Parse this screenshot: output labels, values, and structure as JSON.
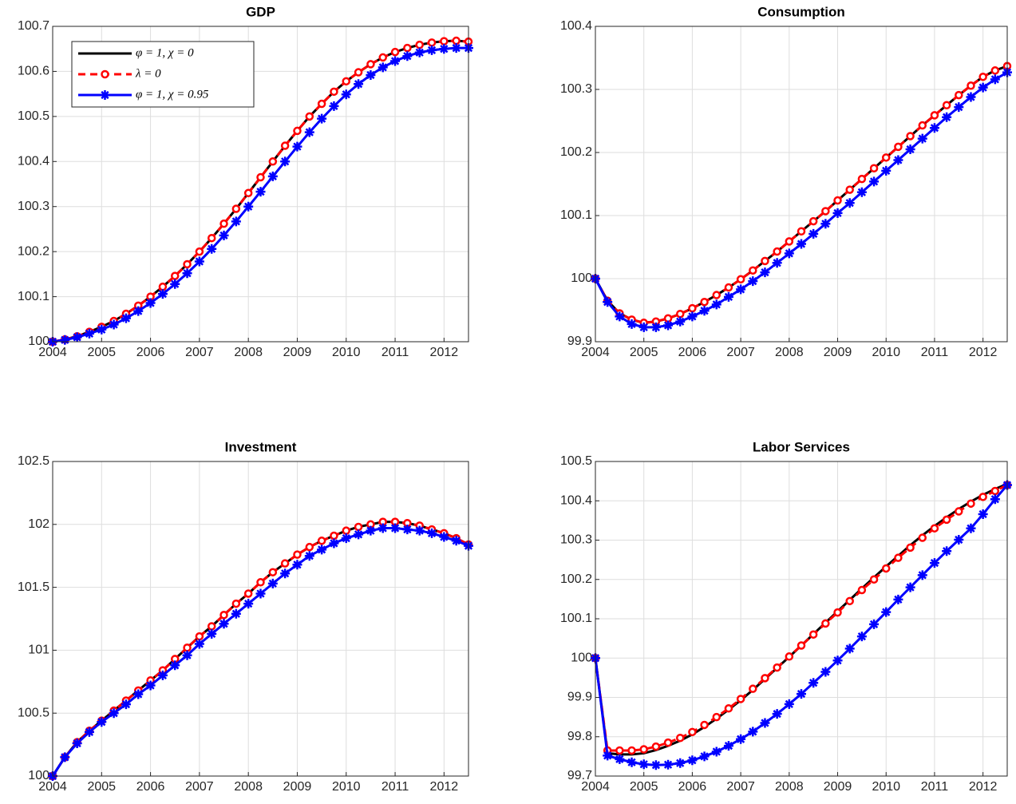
{
  "chart_data": [
    {
      "type": "line",
      "title": "GDP",
      "grid": true,
      "legend": "northwest",
      "x": [
        2004,
        2004.25,
        2004.5,
        2004.75,
        2005,
        2005.25,
        2005.5,
        2005.75,
        2006,
        2006.25,
        2006.5,
        2006.75,
        2007,
        2007.25,
        2007.5,
        2007.75,
        2008,
        2008.25,
        2008.5,
        2008.75,
        2009,
        2009.25,
        2009.5,
        2009.75,
        2010,
        2010.25,
        2010.5,
        2010.75,
        2011,
        2011.25,
        2011.5,
        2011.75,
        2012,
        2012.25,
        2012.5
      ],
      "xlim": [
        2004,
        2012.5
      ],
      "xticks": [
        2004,
        2005,
        2006,
        2007,
        2008,
        2009,
        2010,
        2011,
        2012
      ],
      "ylim": [
        100,
        100.7
      ],
      "yticks": [
        100,
        100.1,
        100.2,
        100.3,
        100.4,
        100.5,
        100.6,
        100.7
      ],
      "series": [
        {
          "name": "φ = 1, χ = 0",
          "color": "#000000",
          "linestyle": "solid",
          "marker": "none",
          "values": [
            100,
            100.005,
            100.012,
            100.022,
            100.033,
            100.046,
            100.062,
            100.08,
            100.1,
            100.122,
            100.146,
            100.172,
            100.2,
            100.23,
            100.262,
            100.295,
            100.33,
            100.365,
            100.4,
            100.435,
            100.468,
            100.5,
            100.528,
            100.555,
            100.578,
            100.598,
            100.616,
            100.631,
            100.643,
            100.652,
            100.659,
            100.664,
            100.667,
            100.668,
            100.666
          ]
        },
        {
          "name": "λ = 0",
          "color": "#ff0000",
          "linestyle": "dashed",
          "marker": "circle",
          "values": [
            100,
            100.005,
            100.012,
            100.022,
            100.033,
            100.046,
            100.062,
            100.08,
            100.1,
            100.122,
            100.146,
            100.172,
            100.2,
            100.23,
            100.262,
            100.295,
            100.33,
            100.365,
            100.4,
            100.435,
            100.468,
            100.5,
            100.528,
            100.555,
            100.578,
            100.598,
            100.616,
            100.631,
            100.643,
            100.652,
            100.659,
            100.664,
            100.667,
            100.668,
            100.666
          ]
        },
        {
          "name": "φ = 1, χ = 0.95",
          "color": "#0000ff",
          "linestyle": "solid",
          "marker": "asterisk",
          "values": [
            100,
            100.004,
            100.01,
            100.018,
            100.027,
            100.038,
            100.052,
            100.068,
            100.086,
            100.106,
            100.128,
            100.152,
            100.178,
            100.206,
            100.236,
            100.267,
            100.3,
            100.333,
            100.367,
            100.4,
            100.433,
            100.465,
            100.495,
            100.523,
            100.549,
            100.572,
            100.592,
            100.609,
            100.623,
            100.634,
            100.642,
            100.647,
            100.65,
            100.652,
            100.652
          ]
        }
      ]
    },
    {
      "type": "line",
      "title": "Consumption",
      "grid": true,
      "x": [
        2004,
        2004.25,
        2004.5,
        2004.75,
        2005,
        2005.25,
        2005.5,
        2005.75,
        2006,
        2006.25,
        2006.5,
        2006.75,
        2007,
        2007.25,
        2007.5,
        2007.75,
        2008,
        2008.25,
        2008.5,
        2008.75,
        2009,
        2009.25,
        2009.5,
        2009.75,
        2010,
        2010.25,
        2010.5,
        2010.75,
        2011,
        2011.25,
        2011.5,
        2011.75,
        2012,
        2012.25,
        2012.5
      ],
      "xlim": [
        2004,
        2012.5
      ],
      "xticks": [
        2004,
        2005,
        2006,
        2007,
        2008,
        2009,
        2010,
        2011,
        2012
      ],
      "ylim": [
        99.9,
        100.4
      ],
      "yticks": [
        99.9,
        100,
        100.1,
        100.2,
        100.3,
        100.4
      ],
      "series": [
        {
          "color": "#000000",
          "linestyle": "solid",
          "marker": "none",
          "values": [
            100,
            99.965,
            99.945,
            99.935,
            99.93,
            99.932,
            99.937,
            99.944,
            99.953,
            99.963,
            99.974,
            99.986,
            99.999,
            100.013,
            100.028,
            100.043,
            100.059,
            100.075,
            100.091,
            100.107,
            100.124,
            100.141,
            100.158,
            100.175,
            100.192,
            100.209,
            100.226,
            100.243,
            100.259,
            100.275,
            100.291,
            100.306,
            100.32,
            100.33,
            100.337
          ]
        },
        {
          "color": "#ff0000",
          "linestyle": "dashed",
          "marker": "circle",
          "values": [
            100,
            99.965,
            99.945,
            99.935,
            99.93,
            99.932,
            99.937,
            99.944,
            99.953,
            99.963,
            99.974,
            99.986,
            99.999,
            100.013,
            100.028,
            100.043,
            100.059,
            100.075,
            100.091,
            100.107,
            100.124,
            100.141,
            100.158,
            100.175,
            100.192,
            100.209,
            100.226,
            100.243,
            100.259,
            100.275,
            100.291,
            100.306,
            100.32,
            100.33,
            100.337
          ]
        },
        {
          "color": "#0000ff",
          "linestyle": "solid",
          "marker": "asterisk",
          "values": [
            100,
            99.963,
            99.94,
            99.928,
            99.923,
            99.923,
            99.926,
            99.932,
            99.94,
            99.949,
            99.959,
            99.971,
            99.983,
            99.996,
            100.01,
            100.025,
            100.04,
            100.055,
            100.071,
            100.087,
            100.104,
            100.12,
            100.137,
            100.154,
            100.171,
            100.188,
            100.205,
            100.222,
            100.239,
            100.256,
            100.272,
            100.288,
            100.303,
            100.316,
            100.327
          ]
        }
      ]
    },
    {
      "type": "line",
      "title": "Investment",
      "grid": true,
      "x": [
        2004,
        2004.25,
        2004.5,
        2004.75,
        2005,
        2005.25,
        2005.5,
        2005.75,
        2006,
        2006.25,
        2006.5,
        2006.75,
        2007,
        2007.25,
        2007.5,
        2007.75,
        2008,
        2008.25,
        2008.5,
        2008.75,
        2009,
        2009.25,
        2009.5,
        2009.75,
        2010,
        2010.25,
        2010.5,
        2010.75,
        2011,
        2011.25,
        2011.5,
        2011.75,
        2012,
        2012.25,
        2012.5
      ],
      "xlim": [
        2004,
        2012.5
      ],
      "xticks": [
        2004,
        2005,
        2006,
        2007,
        2008,
        2009,
        2010,
        2011,
        2012
      ],
      "ylim": [
        100,
        102.5
      ],
      "yticks": [
        100,
        100.5,
        101,
        101.5,
        102,
        102.5
      ],
      "series": [
        {
          "color": "#000000",
          "linestyle": "solid",
          "marker": "none",
          "values": [
            100,
            100.15,
            100.27,
            100.36,
            100.44,
            100.52,
            100.6,
            100.68,
            100.76,
            100.84,
            100.93,
            101.02,
            101.11,
            101.19,
            101.28,
            101.37,
            101.45,
            101.54,
            101.62,
            101.69,
            101.76,
            101.82,
            101.87,
            101.91,
            101.95,
            101.98,
            102,
            102.02,
            102.02,
            102.01,
            101.99,
            101.96,
            101.93,
            101.89,
            101.84
          ]
        },
        {
          "color": "#ff0000",
          "linestyle": "dashed",
          "marker": "circle",
          "values": [
            100,
            100.15,
            100.27,
            100.36,
            100.44,
            100.52,
            100.6,
            100.68,
            100.76,
            100.84,
            100.93,
            101.02,
            101.11,
            101.19,
            101.28,
            101.37,
            101.45,
            101.54,
            101.62,
            101.69,
            101.76,
            101.82,
            101.87,
            101.91,
            101.95,
            101.98,
            102,
            102.02,
            102.02,
            102.01,
            101.99,
            101.96,
            101.93,
            101.89,
            101.84
          ]
        },
        {
          "color": "#0000ff",
          "linestyle": "solid",
          "marker": "asterisk",
          "values": [
            100,
            100.15,
            100.26,
            100.35,
            100.43,
            100.5,
            100.57,
            100.65,
            100.72,
            100.8,
            100.88,
            100.96,
            101.05,
            101.13,
            101.21,
            101.29,
            101.37,
            101.45,
            101.53,
            101.61,
            101.68,
            101.75,
            101.8,
            101.85,
            101.89,
            101.92,
            101.95,
            101.97,
            101.97,
            101.96,
            101.95,
            101.93,
            101.9,
            101.87,
            101.83
          ]
        }
      ]
    },
    {
      "type": "line",
      "title": "Labor Services",
      "grid": true,
      "x": [
        2004,
        2004.25,
        2004.5,
        2004.75,
        2005,
        2005.25,
        2005.5,
        2005.75,
        2006,
        2006.25,
        2006.5,
        2006.75,
        2007,
        2007.25,
        2007.5,
        2007.75,
        2008,
        2008.25,
        2008.5,
        2008.75,
        2009,
        2009.25,
        2009.5,
        2009.75,
        2010,
        2010.25,
        2010.5,
        2010.75,
        2011,
        2011.25,
        2011.5,
        2011.75,
        2012,
        2012.25,
        2012.5
      ],
      "xlim": [
        2004,
        2012.5
      ],
      "xticks": [
        2004,
        2005,
        2006,
        2007,
        2008,
        2009,
        2010,
        2011,
        2012
      ],
      "ylim": [
        99.7,
        100.5
      ],
      "yticks": [
        99.7,
        99.8,
        99.9,
        100,
        100.1,
        100.2,
        100.3,
        100.4,
        100.5
      ],
      "series": [
        {
          "color": "#000000",
          "linestyle": "solid",
          "marker": "none",
          "values": [
            100,
            99.758,
            99.755,
            99.755,
            99.758,
            99.766,
            99.777,
            99.79,
            99.806,
            99.825,
            99.846,
            99.869,
            99.893,
            99.919,
            99.947,
            99.975,
            100.003,
            100.032,
            100.061,
            100.09,
            100.119,
            100.148,
            100.177,
            100.205,
            100.233,
            100.26,
            100.287,
            100.312,
            100.336,
            100.358,
            100.379,
            100.398,
            100.415,
            100.43,
            100.443
          ]
        },
        {
          "color": "#ff0000",
          "linestyle": "dashed",
          "marker": "circle",
          "values": [
            100,
            99.765,
            99.765,
            99.765,
            99.768,
            99.775,
            99.785,
            99.797,
            99.812,
            99.83,
            99.85,
            99.872,
            99.896,
            99.922,
            99.949,
            99.976,
            100.004,
            100.032,
            100.06,
            100.088,
            100.116,
            100.145,
            100.173,
            100.2,
            100.228,
            100.255,
            100.281,
            100.306,
            100.33,
            100.352,
            100.373,
            100.393,
            100.41,
            100.425,
            100.44
          ]
        },
        {
          "color": "#0000ff",
          "linestyle": "solid",
          "marker": "asterisk",
          "values": [
            100,
            99.752,
            99.743,
            99.735,
            99.73,
            99.728,
            99.729,
            99.733,
            99.74,
            99.75,
            99.762,
            99.777,
            99.794,
            99.813,
            99.835,
            99.858,
            99.883,
            99.909,
            99.937,
            99.965,
            99.994,
            100.024,
            100.055,
            100.086,
            100.117,
            100.149,
            100.18,
            100.211,
            100.242,
            100.272,
            100.301,
            100.33,
            100.366,
            100.404,
            100.44
          ]
        }
      ]
    }
  ]
}
